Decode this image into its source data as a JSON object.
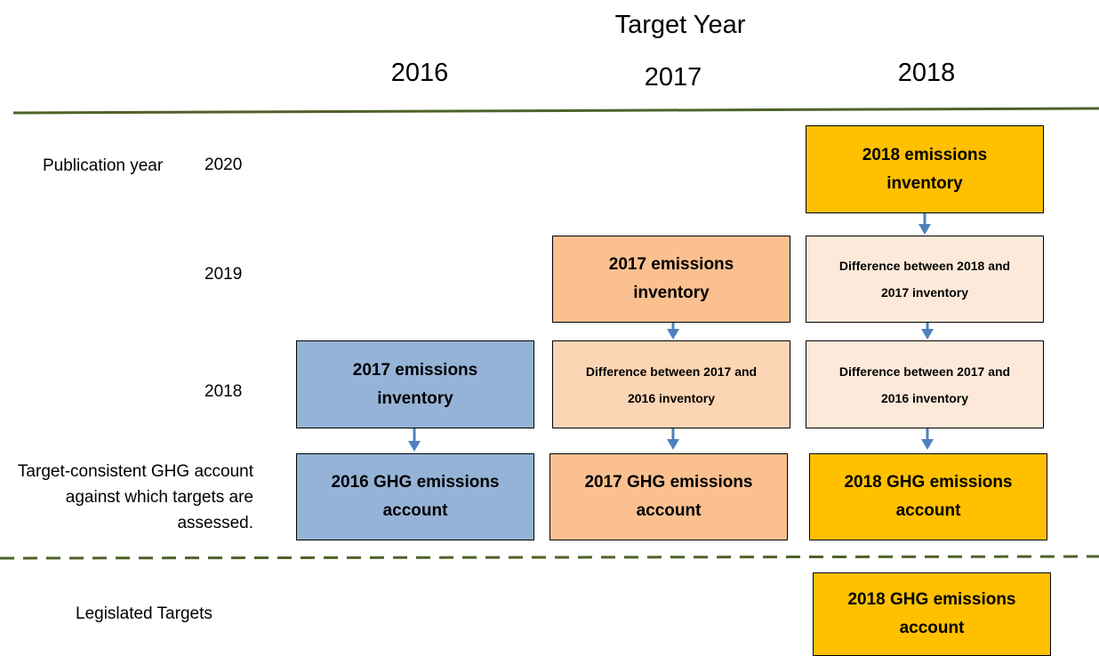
{
  "header": {
    "title": "Target Year",
    "columns": [
      "2016",
      "2017",
      "2018"
    ]
  },
  "rows": {
    "publication_label": "Publication year",
    "years": [
      "2020",
      "2019",
      "2018"
    ],
    "account_label": "Target-consistent  GHG account against which targets are assessed.",
    "legislated_label": "Legislated Targets"
  },
  "boxes": [
    {
      "label": "2018 emissions inventory"
    },
    {
      "label": "2017 emissions inventory"
    },
    {
      "label": "Difference between 2018 and 2017 inventory"
    },
    {
      "label": "2017 emissions inventory"
    },
    {
      "label": "Difference between 2017 and 2016 inventory"
    },
    {
      "label": "Difference between 2017 and 2016 inventory"
    },
    {
      "label": "2016 GHG emissions account"
    },
    {
      "label": "2017 GHG emissions account"
    },
    {
      "label": "2018 GHG emissions account"
    },
    {
      "label": "2018 GHG emissions account"
    }
  ]
}
